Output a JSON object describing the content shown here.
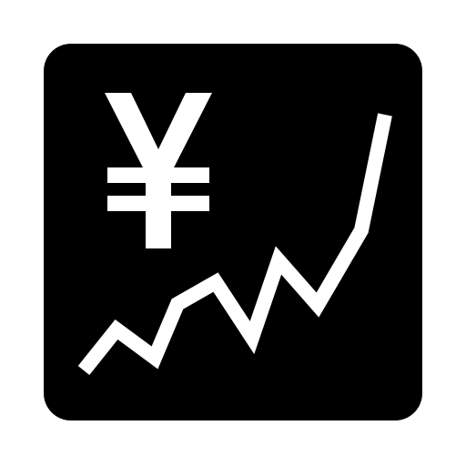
{
  "icon": {
    "name": "chart-increasing-with-yen",
    "symbol": "¥",
    "trend": "increasing",
    "background_color": "#000000",
    "foreground_color": "#ffffff",
    "page_background": "#ffffff"
  }
}
